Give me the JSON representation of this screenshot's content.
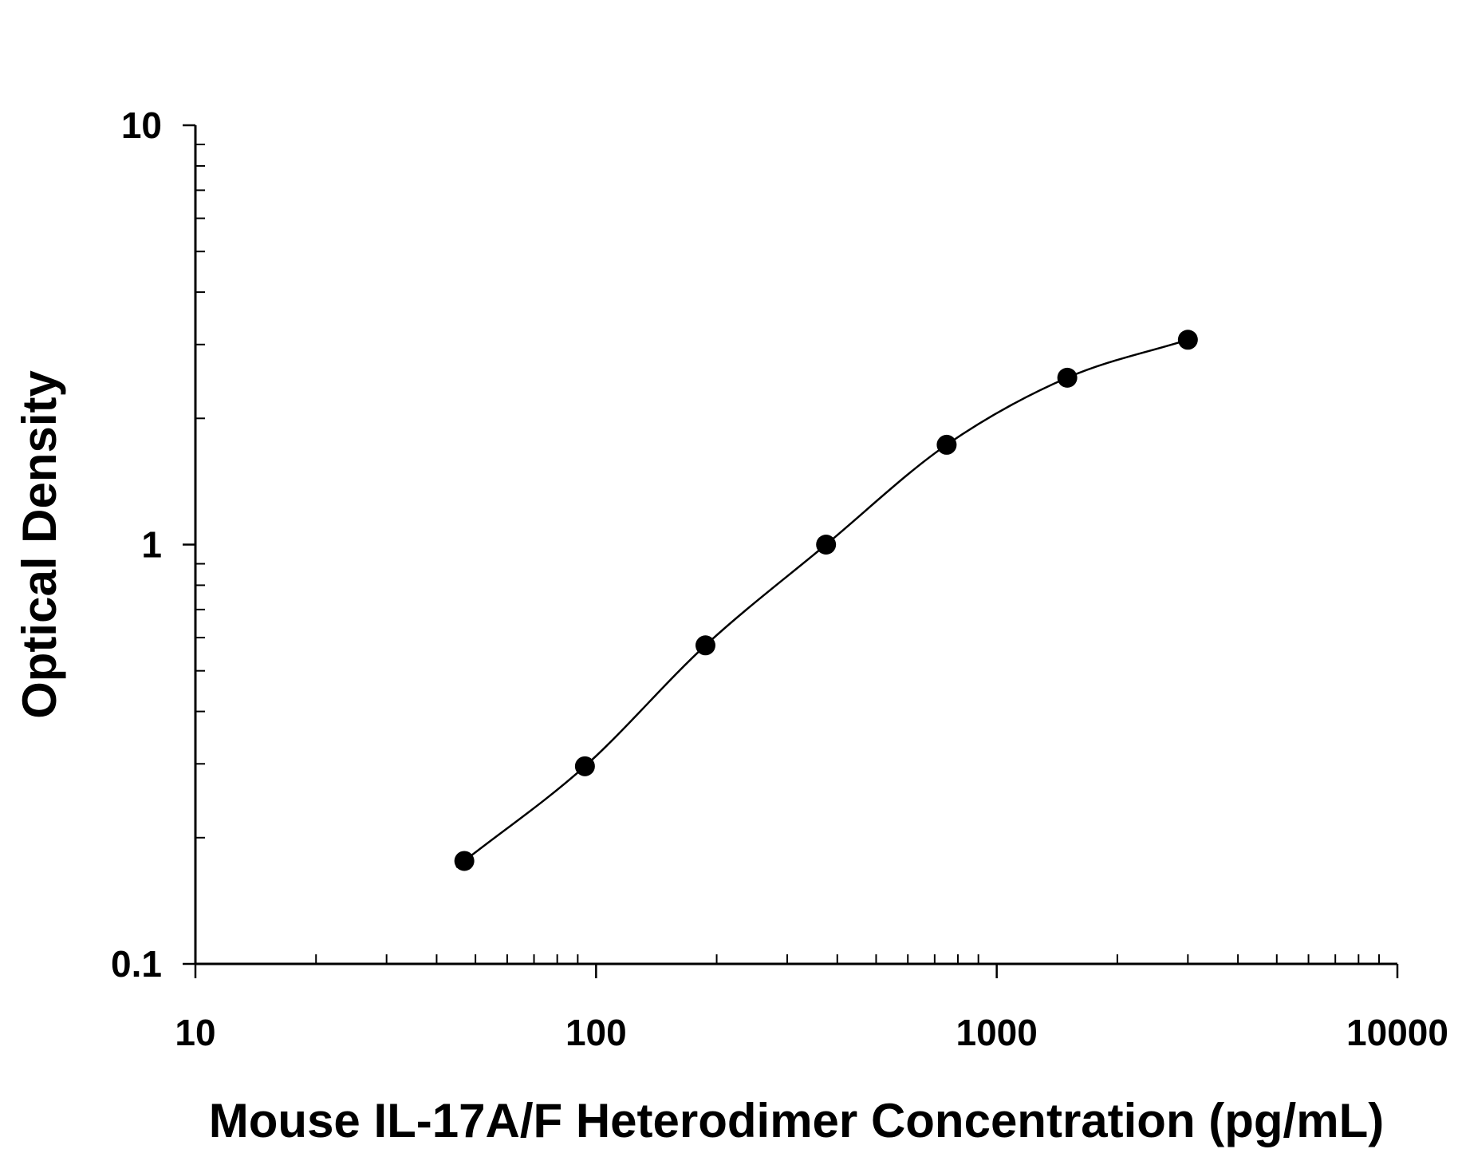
{
  "chart_data": {
    "type": "scatter",
    "title": "",
    "xlabel": "Mouse IL-17A/F Heterodimer Concentration (pg/mL)",
    "ylabel": "Optical Density",
    "x_scale": "log",
    "y_scale": "log",
    "xlim": [
      10,
      10000
    ],
    "ylim": [
      0.1,
      10
    ],
    "x_tick_labels": [
      "10",
      "100",
      "1000",
      "10000"
    ],
    "y_tick_labels": [
      "0.1",
      "1",
      "10"
    ],
    "grid": false,
    "legend": "none",
    "series": [
      {
        "x": [
          46.9,
          93.8,
          187.5,
          375,
          750,
          1500,
          3000
        ],
        "y": [
          0.176,
          0.296,
          0.575,
          1.0,
          1.73,
          2.5,
          3.08
        ]
      }
    ],
    "fit_curve": "smooth sigmoidal fit through points"
  }
}
